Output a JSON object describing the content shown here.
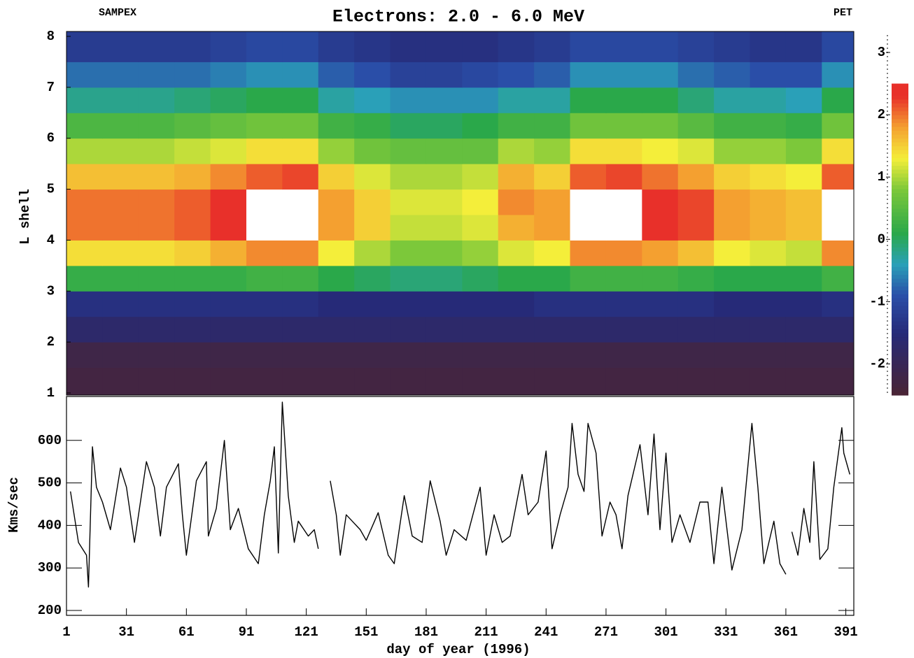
{
  "chart_data": [
    {
      "type": "heatmap",
      "title": "Electrons: 2.0 - 6.0 MeV",
      "left_label": "SAMPEX",
      "right_label": "PET",
      "ylabel": "L shell",
      "xlim": [
        1,
        395
      ],
      "ylim": [
        1,
        8
      ],
      "yticks": [
        1,
        2,
        3,
        4,
        5,
        6,
        7,
        8
      ],
      "x_bins": [
        1,
        19,
        37,
        55,
        73,
        91,
        109,
        127,
        145,
        163,
        181,
        199,
        217,
        235,
        253,
        271,
        289,
        307,
        325,
        343,
        361,
        379,
        395
      ],
      "y_bins": [
        1,
        1.5,
        2,
        2.5,
        3,
        3.5,
        4,
        4.5,
        5,
        5.5,
        6,
        6.5,
        7,
        7.5,
        8
      ],
      "z": [
        [
          -2.3,
          -2.3,
          -2.3,
          -2.3,
          -2.3,
          -2.3,
          -2.3,
          -2.3,
          -2.3,
          -2.3,
          -2.3,
          -2.3,
          -2.3,
          -2.3,
          -2.3,
          -2.3,
          -2.3,
          -2.3,
          -2.3,
          -2.3,
          -2.3,
          -2.3
        ],
        [
          -2.2,
          -2.2,
          -2.2,
          -2.2,
          -2.2,
          -2.2,
          -2.2,
          -2.2,
          -2.2,
          -2.2,
          -2.2,
          -2.2,
          -2.2,
          -2.2,
          -2.2,
          -2.2,
          -2.2,
          -2.2,
          -2.2,
          -2.2,
          -2.2,
          -2.2
        ],
        [
          -1.7,
          -1.7,
          -1.7,
          -1.7,
          -1.7,
          -1.7,
          -1.7,
          -1.7,
          -1.7,
          -1.7,
          -1.7,
          -1.7,
          -1.7,
          -1.7,
          -1.7,
          -1.7,
          -1.7,
          -1.7,
          -1.7,
          -1.7,
          -1.7,
          -1.7
        ],
        [
          -1.4,
          -1.4,
          -1.4,
          -1.4,
          -1.4,
          -1.4,
          -1.4,
          -1.5,
          -1.5,
          -1.5,
          -1.5,
          -1.5,
          -1.5,
          -1.4,
          -1.4,
          -1.4,
          -1.4,
          -1.4,
          -1.5,
          -1.5,
          -1.5,
          -1.4
        ],
        [
          0.2,
          0.2,
          0.2,
          0.2,
          0.2,
          0.3,
          0.3,
          0.1,
          0.0,
          -0.1,
          -0.1,
          0.0,
          0.1,
          0.1,
          0.3,
          0.3,
          0.3,
          0.2,
          0.1,
          0.1,
          0.1,
          0.3
        ],
        [
          1.4,
          1.4,
          1.4,
          1.5,
          1.7,
          1.9,
          1.9,
          1.3,
          1.0,
          0.8,
          0.8,
          0.9,
          1.2,
          1.3,
          1.9,
          1.9,
          1.8,
          1.6,
          1.3,
          1.2,
          1.1,
          1.9
        ],
        [
          2.0,
          2.0,
          2.0,
          2.1,
          2.3,
          2.6,
          2.6,
          1.8,
          1.5,
          1.1,
          1.1,
          1.2,
          1.7,
          1.8,
          2.6,
          2.6,
          2.5,
          2.2,
          1.8,
          1.7,
          1.6,
          2.6
        ],
        [
          2.0,
          2.0,
          2.0,
          2.1,
          2.3,
          2.6,
          2.6,
          1.8,
          1.5,
          1.2,
          1.2,
          1.3,
          1.9,
          1.8,
          2.6,
          2.6,
          2.5,
          2.2,
          1.8,
          1.7,
          1.6,
          2.6
        ],
        [
          1.6,
          1.6,
          1.6,
          1.7,
          1.9,
          2.1,
          2.2,
          1.5,
          1.2,
          1.0,
          1.0,
          1.1,
          1.7,
          1.5,
          2.1,
          2.2,
          2.0,
          1.8,
          1.5,
          1.4,
          1.3,
          2.1
        ],
        [
          1.0,
          1.0,
          1.0,
          1.1,
          1.2,
          1.4,
          1.4,
          0.9,
          0.7,
          0.6,
          0.6,
          0.6,
          1.0,
          0.9,
          1.4,
          1.4,
          1.3,
          1.2,
          0.9,
          0.9,
          0.8,
          1.4
        ],
        [
          0.4,
          0.4,
          0.4,
          0.5,
          0.6,
          0.7,
          0.7,
          0.3,
          0.2,
          0.0,
          0.0,
          0.1,
          0.3,
          0.3,
          0.7,
          0.7,
          0.7,
          0.5,
          0.3,
          0.3,
          0.2,
          0.7
        ],
        [
          -0.2,
          -0.2,
          -0.2,
          -0.1,
          0.0,
          0.1,
          0.1,
          -0.3,
          -0.4,
          -0.5,
          -0.5,
          -0.5,
          -0.3,
          -0.3,
          0.1,
          0.1,
          0.1,
          -0.1,
          -0.3,
          -0.3,
          -0.4,
          0.1
        ],
        [
          -0.7,
          -0.7,
          -0.7,
          -0.7,
          -0.6,
          -0.5,
          -0.5,
          -0.8,
          -0.9,
          -1.1,
          -1.1,
          -1.0,
          -0.9,
          -0.8,
          -0.5,
          -0.5,
          -0.5,
          -0.7,
          -0.8,
          -0.9,
          -0.9,
          -0.5
        ],
        [
          -1.2,
          -1.2,
          -1.2,
          -1.2,
          -1.1,
          -1.0,
          -1.0,
          -1.2,
          -1.3,
          -1.4,
          -1.4,
          -1.4,
          -1.3,
          -1.2,
          -1.0,
          -1.0,
          -1.0,
          -1.1,
          -1.2,
          -1.3,
          -1.3,
          -1.0
        ]
      ],
      "zlim": [
        -2.5,
        3
      ],
      "zticks": [
        -2,
        -1,
        0,
        1,
        2,
        3
      ],
      "colorscale": [
        [
          -2.5,
          "#4a2434"
        ],
        [
          -1.5,
          "#262a78"
        ],
        [
          -0.9,
          "#2a4ea8"
        ],
        [
          -0.4,
          "#2aa0b8"
        ],
        [
          0.1,
          "#2aa84a"
        ],
        [
          0.8,
          "#7cc83a"
        ],
        [
          1.3,
          "#f4ee3a"
        ],
        [
          1.8,
          "#f4a030"
        ],
        [
          2.3,
          "#e8302a"
        ],
        [
          2.5,
          "#e8302a"
        ]
      ],
      "over_color": "#ffffff"
    },
    {
      "type": "line",
      "ylabel": "Kms/sec",
      "xlabel": "day of year (1996)",
      "color": "#000000",
      "xlim": [
        1,
        395
      ],
      "ylim": [
        200,
        700
      ],
      "xticks": [
        1,
        31,
        61,
        91,
        121,
        151,
        181,
        211,
        241,
        271,
        301,
        331,
        361,
        391
      ],
      "yticks": [
        200,
        300,
        400,
        500,
        600
      ],
      "x": [
        3,
        7,
        11,
        12,
        14,
        16,
        19,
        23,
        28,
        31,
        35,
        41,
        45,
        48,
        51,
        57,
        59,
        61,
        66,
        71,
        72,
        76,
        80,
        83,
        87,
        92,
        97,
        100,
        103,
        105,
        107,
        109,
        112,
        115,
        117,
        122,
        125,
        127,
        130,
        133,
        136,
        138,
        141,
        144,
        148,
        151,
        157,
        162,
        165,
        170,
        174,
        179,
        183,
        188,
        191,
        195,
        201,
        208,
        211,
        215,
        219,
        223,
        229,
        232,
        237,
        241,
        244,
        248,
        252,
        254,
        257,
        260,
        262,
        266,
        269,
        273,
        276,
        279,
        282,
        288,
        292,
        295,
        298,
        301,
        304,
        308,
        313,
        318,
        322,
        325,
        329,
        334,
        339,
        344,
        347,
        350,
        355,
        358,
        361,
        363,
        364,
        367,
        370,
        373,
        375,
        378,
        382,
        385,
        389,
        390,
        393
      ],
      "values": [
        480,
        360,
        330,
        255,
        585,
        490,
        455,
        390,
        535,
        490,
        360,
        550,
        490,
        375,
        490,
        545,
        425,
        330,
        505,
        550,
        375,
        440,
        600,
        390,
        440,
        345,
        310,
        425,
        505,
        585,
        335,
        690,
        470,
        360,
        410,
        375,
        390,
        345,
        null,
        505,
        425,
        330,
        425,
        410,
        390,
        365,
        430,
        330,
        310,
        470,
        375,
        360,
        505,
        410,
        330,
        390,
        365,
        490,
        330,
        425,
        360,
        375,
        520,
        425,
        455,
        575,
        345,
        425,
        490,
        640,
        520,
        480,
        640,
        570,
        375,
        455,
        425,
        345,
        470,
        590,
        425,
        615,
        390,
        570,
        360,
        425,
        360,
        455,
        455,
        310,
        490,
        295,
        390,
        640,
        490,
        310,
        410,
        310,
        285,
        null,
        385,
        330,
        440,
        360,
        550,
        320,
        345,
        490,
        630,
        570,
        520
      ]
    }
  ]
}
